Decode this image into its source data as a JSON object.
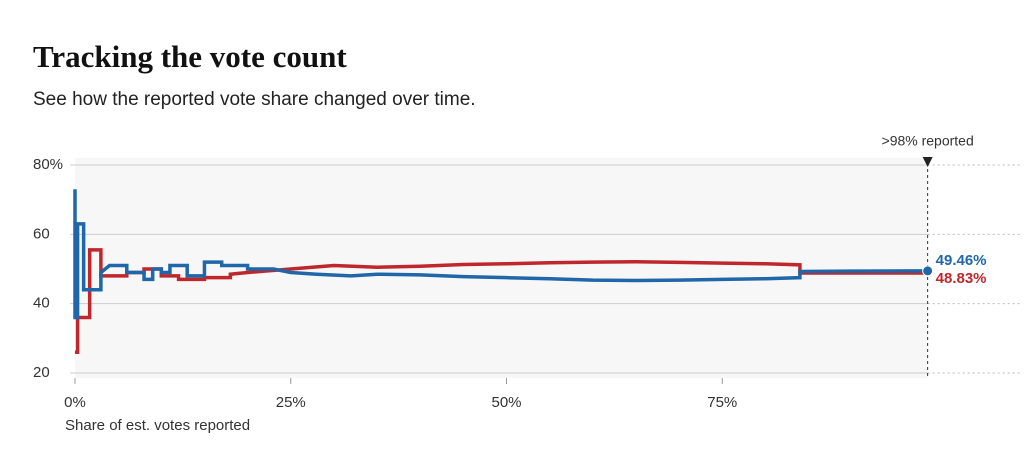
{
  "chart_data": {
    "type": "line",
    "title": "Tracking the vote count",
    "subtitle": "See how the reported vote share changed over time.",
    "x_label": "Share of est. votes reported",
    "annotation": ">98% reported",
    "xlim": [
      0,
      100
    ],
    "ylim": [
      20,
      80
    ],
    "xticks": [
      {
        "value": 0,
        "label": "0%"
      },
      {
        "value": 25,
        "label": "25%"
      },
      {
        "value": 50,
        "label": "50%"
      },
      {
        "value": 75,
        "label": "75%"
      }
    ],
    "yticks": [
      {
        "value": 80,
        "label": "80%"
      },
      60,
      40,
      20
    ],
    "grid": true,
    "series": [
      {
        "name": "Red",
        "color": "#c0272d",
        "end_label": "48.83%",
        "x": [
          0,
          0.3,
          0.3,
          1.7,
          1.7,
          3,
          3,
          6,
          6,
          8,
          8,
          10,
          10,
          12,
          12,
          15,
          15,
          18,
          18,
          20,
          25,
          30,
          35,
          40,
          45,
          50,
          55,
          60,
          65,
          70,
          75,
          80,
          84,
          84,
          98.8
        ],
        "values": [
          26,
          26,
          36,
          36,
          55.5,
          55.5,
          48,
          48,
          49,
          49,
          50,
          50,
          48,
          48,
          47,
          47,
          47.5,
          47.5,
          48.5,
          49,
          50,
          51,
          50.5,
          50.8,
          51.3,
          51.5,
          51.8,
          52,
          52.1,
          51.9,
          51.7,
          51.5,
          51.2,
          48.83,
          48.83
        ]
      },
      {
        "name": "Blue",
        "color": "#1f67a8",
        "end_label": "49.46%",
        "x": [
          0,
          0,
          0.3,
          0.3,
          1,
          1,
          3,
          3,
          4,
          6,
          6,
          8,
          8,
          9,
          9,
          10,
          10,
          11,
          11,
          13,
          13,
          15,
          15,
          17,
          17,
          20,
          20,
          23,
          25,
          28,
          32,
          35,
          40,
          45,
          50,
          55,
          60,
          65,
          70,
          75,
          80,
          84,
          84,
          90,
          98.8
        ],
        "values": [
          73,
          36,
          36,
          63,
          63,
          44,
          44,
          49,
          51,
          51,
          49,
          49,
          47,
          47,
          50,
          50,
          49,
          49,
          51,
          51,
          48,
          48,
          52,
          52,
          51,
          51,
          50,
          50,
          49,
          48.5,
          48,
          48.5,
          48.3,
          47.8,
          47.5,
          47.2,
          46.8,
          46.7,
          46.8,
          47,
          47.2,
          47.5,
          49.3,
          49.4,
          49.46
        ]
      }
    ]
  }
}
